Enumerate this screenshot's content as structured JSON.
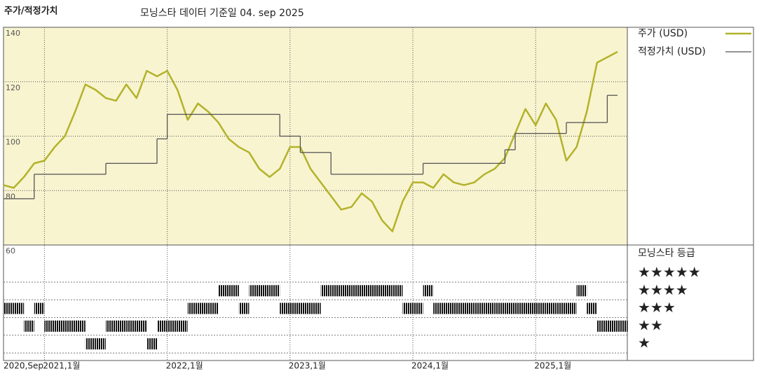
{
  "chart_data": {
    "type": "line",
    "title": "주가/적정가치",
    "subtitle": "모닝스타 데이터 기준일 04. sep 2025",
    "x": [
      "2020-09",
      "2020-10",
      "2020-11",
      "2020-12",
      "2021-01",
      "2021-02",
      "2021-03",
      "2021-04",
      "2021-05",
      "2021-06",
      "2021-07",
      "2021-08",
      "2021-09",
      "2021-10",
      "2021-11",
      "2021-12",
      "2022-01",
      "2022-02",
      "2022-03",
      "2022-04",
      "2022-05",
      "2022-06",
      "2022-07",
      "2022-08",
      "2022-09",
      "2022-10",
      "2022-11",
      "2022-12",
      "2023-01",
      "2023-02",
      "2023-03",
      "2023-04",
      "2023-05",
      "2023-06",
      "2023-07",
      "2023-08",
      "2023-09",
      "2023-10",
      "2023-11",
      "2023-12",
      "2024-01",
      "2024-02",
      "2024-03",
      "2024-04",
      "2024-05",
      "2024-06",
      "2024-07",
      "2024-08",
      "2024-09",
      "2024-10",
      "2024-11",
      "2024-12",
      "2025-01",
      "2025-02",
      "2025-03",
      "2025-04",
      "2025-05",
      "2025-06",
      "2025-07",
      "2025-08",
      "2025-09"
    ],
    "xticks": [
      {
        "value": "2020-09",
        "label": "2020,Sep"
      },
      {
        "value": "2021-01",
        "label": "2021,1월"
      },
      {
        "value": "2022-01",
        "label": "2022,1월"
      },
      {
        "value": "2023-01",
        "label": "2023,1월"
      },
      {
        "value": "2024-01",
        "label": "2024,1월"
      },
      {
        "value": "2025-01",
        "label": "2025,1월"
      }
    ],
    "ylim": [
      60,
      140
    ],
    "yticks": [
      60,
      80,
      100,
      120,
      140
    ],
    "grid": true,
    "series": [
      {
        "name": "주가 (USD)",
        "color": "#b3b22a",
        "style": "line",
        "values": [
          82,
          81,
          85,
          90,
          91,
          96,
          100,
          109,
          119,
          117,
          114,
          113,
          119,
          114,
          124,
          122,
          124,
          117,
          106,
          112,
          109,
          105,
          99,
          96,
          94,
          88,
          85,
          88,
          96,
          96,
          88,
          83,
          78,
          73,
          74,
          79,
          76,
          69,
          65,
          76,
          83,
          83,
          81,
          86,
          83,
          82,
          83,
          86,
          88,
          92,
          101,
          110,
          104,
          112,
          106,
          91,
          96,
          109,
          127,
          129,
          131
        ]
      },
      {
        "name": "적정가치 (USD)",
        "color": "#555555",
        "style": "step",
        "values": [
          77,
          77,
          77,
          86,
          86,
          86,
          86,
          86,
          86,
          86,
          90,
          90,
          90,
          90,
          90,
          99,
          108,
          108,
          108,
          108,
          108,
          108,
          108,
          108,
          108,
          108,
          108,
          100,
          100,
          94,
          94,
          94,
          86,
          86,
          86,
          86,
          86,
          86,
          86,
          86,
          86,
          90,
          90,
          90,
          90,
          90,
          90,
          90,
          90,
          95,
          101,
          101,
          101,
          101,
          101,
          105,
          105,
          105,
          105,
          115,
          115
        ]
      }
    ],
    "ratings": {
      "name": "모닝스타 등급",
      "levels": [
        {
          "value": 5,
          "label": "★★★★★"
        },
        {
          "value": 4,
          "label": "★★★★"
        },
        {
          "value": 3,
          "label": "★★★"
        },
        {
          "value": 2,
          "label": "★★"
        },
        {
          "value": 1,
          "label": "★"
        }
      ],
      "values": [
        3,
        3,
        2,
        3,
        2,
        2,
        2,
        2,
        1,
        1,
        2,
        2,
        2,
        2,
        1,
        2,
        2,
        2,
        3,
        3,
        3,
        4,
        4,
        3,
        4,
        4,
        4,
        3,
        3,
        3,
        3,
        4,
        4,
        4,
        4,
        4,
        4,
        4,
        4,
        3,
        3,
        4,
        3,
        3,
        3,
        3,
        3,
        3,
        3,
        3,
        3,
        3,
        3,
        3,
        3,
        3,
        4,
        3,
        2,
        2,
        2
      ]
    }
  }
}
